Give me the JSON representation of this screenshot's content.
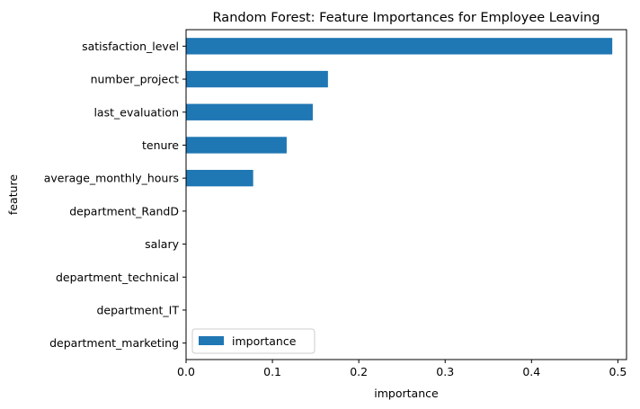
{
  "chart_data": {
    "type": "bar",
    "orientation": "horizontal",
    "title": "Random Forest: Feature Importances for Employee Leaving",
    "xlabel": "importance",
    "ylabel": "feature",
    "categories": [
      "satisfaction_level",
      "number_project",
      "last_evaluation",
      "tenure",
      "average_monthly_hours",
      "department_RandD",
      "salary",
      "department_technical",
      "department_IT",
      "department_marketing"
    ],
    "series": [
      {
        "name": "importance",
        "color": "#1f77b4",
        "values": [
          0.4935,
          0.1643,
          0.1467,
          0.1165,
          0.0777,
          0.0,
          0.0,
          0.0,
          0.0,
          0.0
        ]
      }
    ],
    "xlim": [
      0,
      0.51
    ],
    "xticks": [
      {
        "value": 0.0,
        "label": "0.0"
      },
      {
        "value": 0.1,
        "label": "0.1"
      },
      {
        "value": 0.2,
        "label": "0.2"
      },
      {
        "value": 0.3,
        "label": "0.3"
      },
      {
        "value": 0.4,
        "label": "0.4"
      },
      {
        "value": 0.5,
        "label": "0.5"
      }
    ],
    "grid": false,
    "legend": {
      "position": "lower-left",
      "entries": [
        "importance"
      ]
    }
  }
}
